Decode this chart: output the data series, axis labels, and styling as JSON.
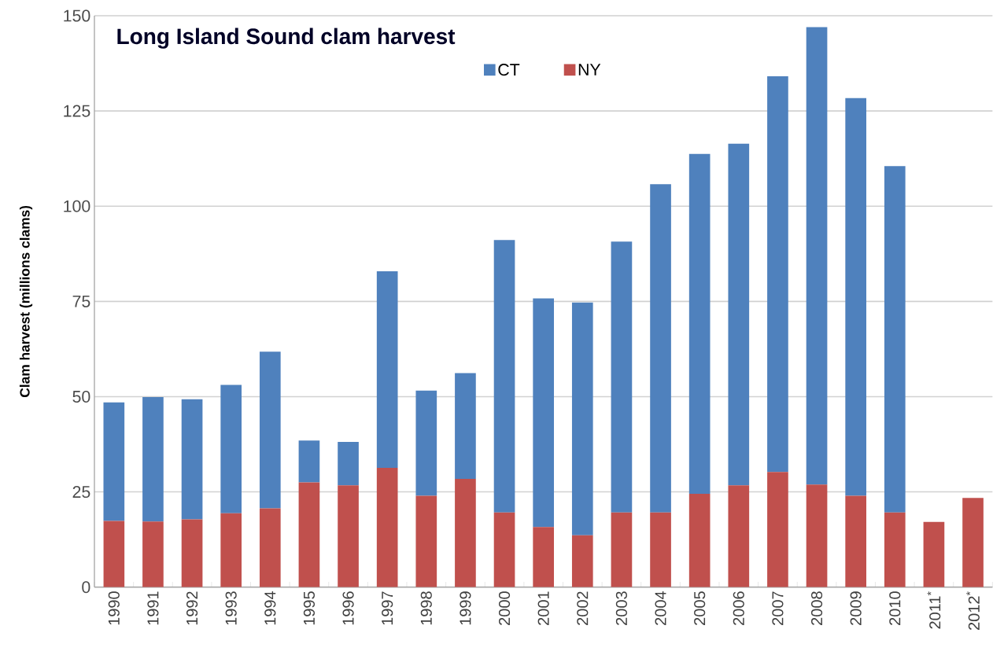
{
  "chart_data": {
    "type": "bar",
    "stacked": true,
    "title": "Long Island Sound clam harvest",
    "ylabel": "Clam harvest (millions clams)",
    "categories": [
      "1990",
      "1991",
      "1992",
      "1993",
      "1994",
      "1995",
      "1996",
      "1997",
      "1998",
      "1999",
      "2000",
      "2001",
      "2002",
      "2003",
      "2004",
      "2005",
      "2006",
      "2007",
      "2008",
      "2009",
      "2010",
      "2011$^{*}$",
      "2012$^{*}$"
    ],
    "series": [
      {
        "name": "NY",
        "color": "#c0504d",
        "values": [
          17.4,
          17.2,
          17.8,
          19.4,
          20.7,
          27.5,
          26.7,
          31.3,
          24.0,
          28.4,
          19.6,
          15.8,
          13.6,
          19.6,
          19.6,
          24.5,
          26.7,
          30.2,
          26.9,
          24.0,
          19.6,
          17.1,
          23.4
        ]
      },
      {
        "name": "CT",
        "color": "#4f81bd",
        "values": [
          31.1,
          32.7,
          31.5,
          33.7,
          41.1,
          11.0,
          11.4,
          51.6,
          27.6,
          27.8,
          71.5,
          60.0,
          61.1,
          71.1,
          86.2,
          89.2,
          89.7,
          103.9,
          120.1,
          104.4,
          90.9,
          null,
          null
        ]
      }
    ],
    "ylim": [
      0,
      150
    ],
    "yticks": [
      0,
      25,
      50,
      75,
      100,
      125,
      150
    ],
    "grid": "y",
    "legend": "top"
  }
}
